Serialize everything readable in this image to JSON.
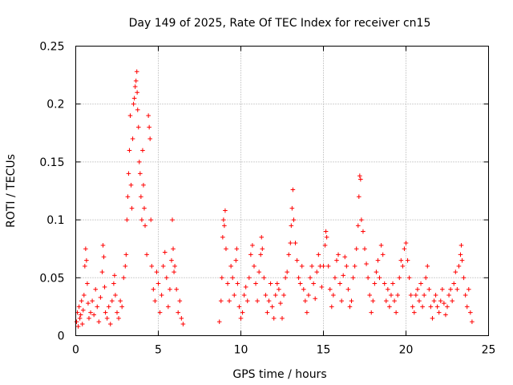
{
  "chart_data": {
    "type": "scatter",
    "title": "Day 149 of 2025, Rate Of TEC Index for receiver cn15",
    "xlabel": "GPS time / hours",
    "ylabel": "ROTI / TECUs",
    "xlim": [
      0,
      25
    ],
    "ylim": [
      0,
      0.25
    ],
    "xticks": [
      0,
      5,
      10,
      15,
      20,
      25
    ],
    "xtick_labels": [
      "0",
      "5",
      "10",
      "15",
      "20",
      "25"
    ],
    "yticks": [
      0,
      0.05,
      0.1,
      0.15,
      0.2,
      0.25
    ],
    "ytick_labels": [
      "0",
      "0.05",
      "0.1",
      "0.15",
      "0.2",
      "0.25"
    ],
    "grid": true,
    "marker": "+",
    "color": "#ff0000",
    "data_gap": [
      6.6,
      8.6
    ],
    "series": [
      {
        "name": "ROTI",
        "points": [
          [
            0.05,
            0.012
          ],
          [
            0.1,
            0.02
          ],
          [
            0.15,
            0.008
          ],
          [
            0.2,
            0.025
          ],
          [
            0.25,
            0.015
          ],
          [
            0.3,
            0.018
          ],
          [
            0.35,
            0.03
          ],
          [
            0.4,
            0.01
          ],
          [
            0.45,
            0.022
          ],
          [
            0.5,
            0.035
          ],
          [
            0.55,
            0.06
          ],
          [
            0.6,
            0.075
          ],
          [
            0.65,
            0.065
          ],
          [
            0.7,
            0.045
          ],
          [
            0.75,
            0.028
          ],
          [
            0.8,
            0.015
          ],
          [
            0.9,
            0.02
          ],
          [
            1.0,
            0.03
          ],
          [
            1.1,
            0.018
          ],
          [
            1.2,
            0.04
          ],
          [
            1.3,
            0.025
          ],
          [
            1.4,
            0.012
          ],
          [
            1.5,
            0.033
          ],
          [
            1.6,
            0.055
          ],
          [
            1.65,
            0.078
          ],
          [
            1.7,
            0.068
          ],
          [
            1.75,
            0.042
          ],
          [
            1.8,
            0.02
          ],
          [
            1.9,
            0.015
          ],
          [
            2.0,
            0.025
          ],
          [
            2.1,
            0.01
          ],
          [
            2.2,
            0.03
          ],
          [
            2.3,
            0.045
          ],
          [
            2.35,
            0.052
          ],
          [
            2.4,
            0.035
          ],
          [
            2.5,
            0.02
          ],
          [
            2.6,
            0.015
          ],
          [
            2.7,
            0.03
          ],
          [
            2.8,
            0.025
          ],
          [
            2.9,
            0.05
          ],
          [
            3.0,
            0.06
          ],
          [
            3.05,
            0.07
          ],
          [
            3.1,
            0.1
          ],
          [
            3.15,
            0.12
          ],
          [
            3.2,
            0.14
          ],
          [
            3.25,
            0.16
          ],
          [
            3.3,
            0.19
          ],
          [
            3.35,
            0.13
          ],
          [
            3.4,
            0.11
          ],
          [
            3.45,
            0.17
          ],
          [
            3.5,
            0.2
          ],
          [
            3.55,
            0.205
          ],
          [
            3.6,
            0.215
          ],
          [
            3.65,
            0.22
          ],
          [
            3.7,
            0.228
          ],
          [
            3.72,
            0.21
          ],
          [
            3.75,
            0.195
          ],
          [
            3.8,
            0.18
          ],
          [
            3.85,
            0.15
          ],
          [
            3.9,
            0.14
          ],
          [
            3.95,
            0.12
          ],
          [
            4.0,
            0.1
          ],
          [
            4.05,
            0.16
          ],
          [
            4.1,
            0.13
          ],
          [
            4.15,
            0.11
          ],
          [
            4.2,
            0.095
          ],
          [
            4.3,
            0.07
          ],
          [
            4.4,
            0.19
          ],
          [
            4.45,
            0.18
          ],
          [
            4.5,
            0.17
          ],
          [
            4.55,
            0.1
          ],
          [
            4.6,
            0.06
          ],
          [
            4.7,
            0.04
          ],
          [
            4.8,
            0.03
          ],
          [
            4.9,
            0.055
          ],
          [
            5.0,
            0.045
          ],
          [
            5.1,
            0.02
          ],
          [
            5.2,
            0.035
          ],
          [
            5.3,
            0.06
          ],
          [
            5.4,
            0.072
          ],
          [
            5.5,
            0.05
          ],
          [
            5.6,
            0.025
          ],
          [
            5.7,
            0.04
          ],
          [
            5.8,
            0.065
          ],
          [
            5.85,
            0.1
          ],
          [
            5.9,
            0.075
          ],
          [
            5.95,
            0.055
          ],
          [
            6.0,
            0.06
          ],
          [
            6.1,
            0.04
          ],
          [
            6.2,
            0.02
          ],
          [
            6.3,
            0.03
          ],
          [
            6.4,
            0.015
          ],
          [
            6.5,
            0.01
          ],
          [
            8.7,
            0.012
          ],
          [
            8.8,
            0.03
          ],
          [
            8.85,
            0.05
          ],
          [
            8.9,
            0.085
          ],
          [
            8.95,
            0.1
          ],
          [
            9.0,
            0.095
          ],
          [
            9.05,
            0.108
          ],
          [
            9.1,
            0.075
          ],
          [
            9.2,
            0.045
          ],
          [
            9.3,
            0.03
          ],
          [
            9.4,
            0.06
          ],
          [
            9.5,
            0.05
          ],
          [
            9.6,
            0.035
          ],
          [
            9.7,
            0.065
          ],
          [
            9.75,
            0.075
          ],
          [
            9.8,
            0.045
          ],
          [
            9.9,
            0.025
          ],
          [
            10.0,
            0.015
          ],
          [
            10.1,
            0.02
          ],
          [
            10.2,
            0.035
          ],
          [
            10.3,
            0.042
          ],
          [
            10.4,
            0.03
          ],
          [
            10.5,
            0.05
          ],
          [
            10.6,
            0.07
          ],
          [
            10.7,
            0.078
          ],
          [
            10.8,
            0.06
          ],
          [
            10.9,
            0.045
          ],
          [
            11.0,
            0.03
          ],
          [
            11.1,
            0.055
          ],
          [
            11.2,
            0.07
          ],
          [
            11.25,
            0.085
          ],
          [
            11.3,
            0.075
          ],
          [
            11.4,
            0.05
          ],
          [
            11.5,
            0.035
          ],
          [
            11.6,
            0.02
          ],
          [
            11.7,
            0.03
          ],
          [
            11.8,
            0.045
          ],
          [
            11.9,
            0.025
          ],
          [
            12.0,
            0.015
          ],
          [
            12.1,
            0.035
          ],
          [
            12.2,
            0.045
          ],
          [
            12.3,
            0.04
          ],
          [
            12.4,
            0.028
          ],
          [
            12.5,
            0.015
          ],
          [
            12.6,
            0.035
          ],
          [
            12.7,
            0.05
          ],
          [
            12.8,
            0.055
          ],
          [
            12.9,
            0.07
          ],
          [
            13.0,
            0.08
          ],
          [
            13.05,
            0.095
          ],
          [
            13.1,
            0.11
          ],
          [
            13.15,
            0.126
          ],
          [
            13.2,
            0.1
          ],
          [
            13.3,
            0.08
          ],
          [
            13.4,
            0.065
          ],
          [
            13.5,
            0.05
          ],
          [
            13.6,
            0.045
          ],
          [
            13.7,
            0.06
          ],
          [
            13.8,
            0.04
          ],
          [
            13.9,
            0.03
          ],
          [
            14.0,
            0.02
          ],
          [
            14.1,
            0.035
          ],
          [
            14.2,
            0.05
          ],
          [
            14.3,
            0.06
          ],
          [
            14.4,
            0.045
          ],
          [
            14.5,
            0.032
          ],
          [
            14.6,
            0.055
          ],
          [
            14.7,
            0.07
          ],
          [
            14.8,
            0.06
          ],
          [
            14.9,
            0.042
          ],
          [
            15.0,
            0.06
          ],
          [
            15.1,
            0.078
          ],
          [
            15.15,
            0.09
          ],
          [
            15.2,
            0.085
          ],
          [
            15.3,
            0.06
          ],
          [
            15.4,
            0.04
          ],
          [
            15.5,
            0.025
          ],
          [
            15.6,
            0.035
          ],
          [
            15.7,
            0.05
          ],
          [
            15.8,
            0.065
          ],
          [
            15.9,
            0.07
          ],
          [
            16.0,
            0.045
          ],
          [
            16.1,
            0.03
          ],
          [
            16.2,
            0.052
          ],
          [
            16.3,
            0.068
          ],
          [
            16.4,
            0.06
          ],
          [
            16.5,
            0.04
          ],
          [
            16.6,
            0.025
          ],
          [
            16.7,
            0.03
          ],
          [
            16.8,
            0.05
          ],
          [
            16.9,
            0.06
          ],
          [
            17.0,
            0.075
          ],
          [
            17.1,
            0.095
          ],
          [
            17.15,
            0.12
          ],
          [
            17.2,
            0.138
          ],
          [
            17.25,
            0.135
          ],
          [
            17.3,
            0.1
          ],
          [
            17.4,
            0.09
          ],
          [
            17.5,
            0.075
          ],
          [
            17.6,
            0.062
          ],
          [
            17.7,
            0.05
          ],
          [
            17.8,
            0.035
          ],
          [
            17.9,
            0.02
          ],
          [
            18.0,
            0.03
          ],
          [
            18.1,
            0.045
          ],
          [
            18.2,
            0.055
          ],
          [
            18.3,
            0.065
          ],
          [
            18.4,
            0.05
          ],
          [
            18.5,
            0.078
          ],
          [
            18.6,
            0.07
          ],
          [
            18.7,
            0.045
          ],
          [
            18.8,
            0.03
          ],
          [
            18.9,
            0.04
          ],
          [
            19.0,
            0.025
          ],
          [
            19.1,
            0.035
          ],
          [
            19.2,
            0.045
          ],
          [
            19.3,
            0.03
          ],
          [
            19.4,
            0.02
          ],
          [
            19.5,
            0.035
          ],
          [
            19.6,
            0.05
          ],
          [
            19.7,
            0.065
          ],
          [
            19.8,
            0.06
          ],
          [
            19.9,
            0.075
          ],
          [
            20.0,
            0.08
          ],
          [
            20.1,
            0.065
          ],
          [
            20.2,
            0.05
          ],
          [
            20.3,
            0.035
          ],
          [
            20.4,
            0.025
          ],
          [
            20.5,
            0.02
          ],
          [
            20.6,
            0.035
          ],
          [
            20.7,
            0.04
          ],
          [
            20.8,
            0.03
          ],
          [
            20.9,
            0.045
          ],
          [
            21.0,
            0.025
          ],
          [
            21.1,
            0.035
          ],
          [
            21.2,
            0.05
          ],
          [
            21.3,
            0.06
          ],
          [
            21.4,
            0.04
          ],
          [
            21.5,
            0.025
          ],
          [
            21.6,
            0.015
          ],
          [
            21.7,
            0.03
          ],
          [
            21.8,
            0.035
          ],
          [
            21.9,
            0.025
          ],
          [
            22.0,
            0.02
          ],
          [
            22.1,
            0.03
          ],
          [
            22.2,
            0.04
          ],
          [
            22.3,
            0.028
          ],
          [
            22.4,
            0.018
          ],
          [
            22.5,
            0.025
          ],
          [
            22.6,
            0.035
          ],
          [
            22.7,
            0.04
          ],
          [
            22.8,
            0.03
          ],
          [
            22.9,
            0.045
          ],
          [
            23.0,
            0.055
          ],
          [
            23.1,
            0.04
          ],
          [
            23.2,
            0.06
          ],
          [
            23.3,
            0.07
          ],
          [
            23.35,
            0.078
          ],
          [
            23.4,
            0.065
          ],
          [
            23.5,
            0.05
          ],
          [
            23.6,
            0.035
          ],
          [
            23.7,
            0.025
          ],
          [
            23.8,
            0.04
          ],
          [
            23.9,
            0.02
          ],
          [
            24.0,
            0.012
          ]
        ]
      }
    ]
  }
}
